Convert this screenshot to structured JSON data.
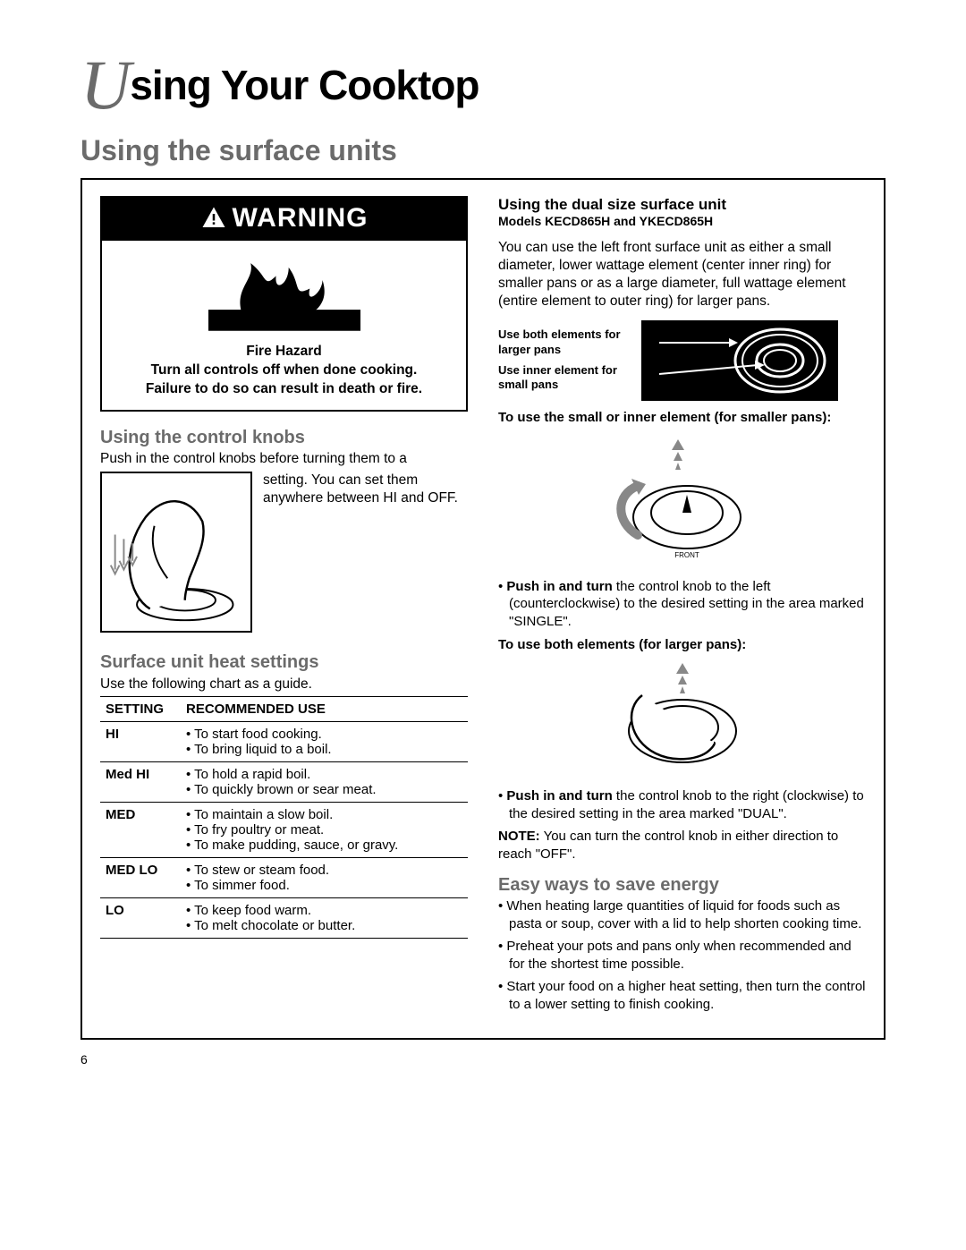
{
  "title": {
    "dropcap": "U",
    "rest": "sing Your Cooktop"
  },
  "subtitle": "Using the surface units",
  "warning": {
    "header": "WARNING",
    "line1": "Fire Hazard",
    "line2": "Turn all controls off when done cooking.",
    "line3": "Failure to do so can result in death or fire."
  },
  "knobs": {
    "heading": "Using the control knobs",
    "intro": "Push in the control knobs before turning them to a",
    "cont": "setting. You can set them anywhere between HI and OFF."
  },
  "heat": {
    "heading": "Surface unit heat settings",
    "intro": "Use the following chart as a guide.",
    "columns": [
      "SETTING",
      "RECOMMENDED USE"
    ],
    "rows": [
      {
        "setting": "HI",
        "uses": [
          "To start food cooking.",
          "To bring liquid to a boil."
        ]
      },
      {
        "setting": "Med HI",
        "uses": [
          "To hold a rapid boil.",
          "To quickly brown or sear meat."
        ]
      },
      {
        "setting": "MED",
        "uses": [
          "To maintain a slow boil.",
          "To fry poultry or meat.",
          "To make pudding, sauce, or gravy."
        ]
      },
      {
        "setting": "MED LO",
        "uses": [
          "To stew or steam food.",
          "To simmer food."
        ]
      },
      {
        "setting": "LO",
        "uses": [
          "To keep food warm.",
          "To melt chocolate or butter."
        ]
      }
    ]
  },
  "dual": {
    "heading": "Using the dual size surface unit",
    "models": "Models KECD865H and YKECD865H",
    "para": "You can use the left front surface unit as either a small diameter, lower wattage element (center inner ring) for smaller pans or as a large diameter, full wattage element (entire element to outer ring) for larger pans.",
    "label_large": "Use both elements for larger pans",
    "label_small": "Use inner element for small pans",
    "instr_small_head": "To use the small or inner element (for smaller pans):",
    "instr_small_bullet_bold": "Push in and turn",
    "instr_small_bullet_rest": " the control knob to the left (counterclockwise) to the desired setting in the area marked \"SINGLE\".",
    "instr_large_head": "To use both elements (for larger pans):",
    "instr_large_bullet_bold": "Push in and turn",
    "instr_large_bullet_rest": " the control knob to the right (clockwise) to the desired setting in the area marked \"DUAL\".",
    "note_bold": "NOTE:",
    "note_rest": " You can turn the control knob in either direction to reach \"OFF\"."
  },
  "energy": {
    "heading": "Easy ways to save energy",
    "items": [
      "When heating large quantities of liquid for foods such as pasta or soup, cover with a lid to help shorten cooking time.",
      "Preheat your pots and pans only when recommended and for the shortest time possible.",
      "Start your food on a higher heat setting, then turn the control to a lower setting to finish cooking."
    ]
  },
  "page_number": "6"
}
